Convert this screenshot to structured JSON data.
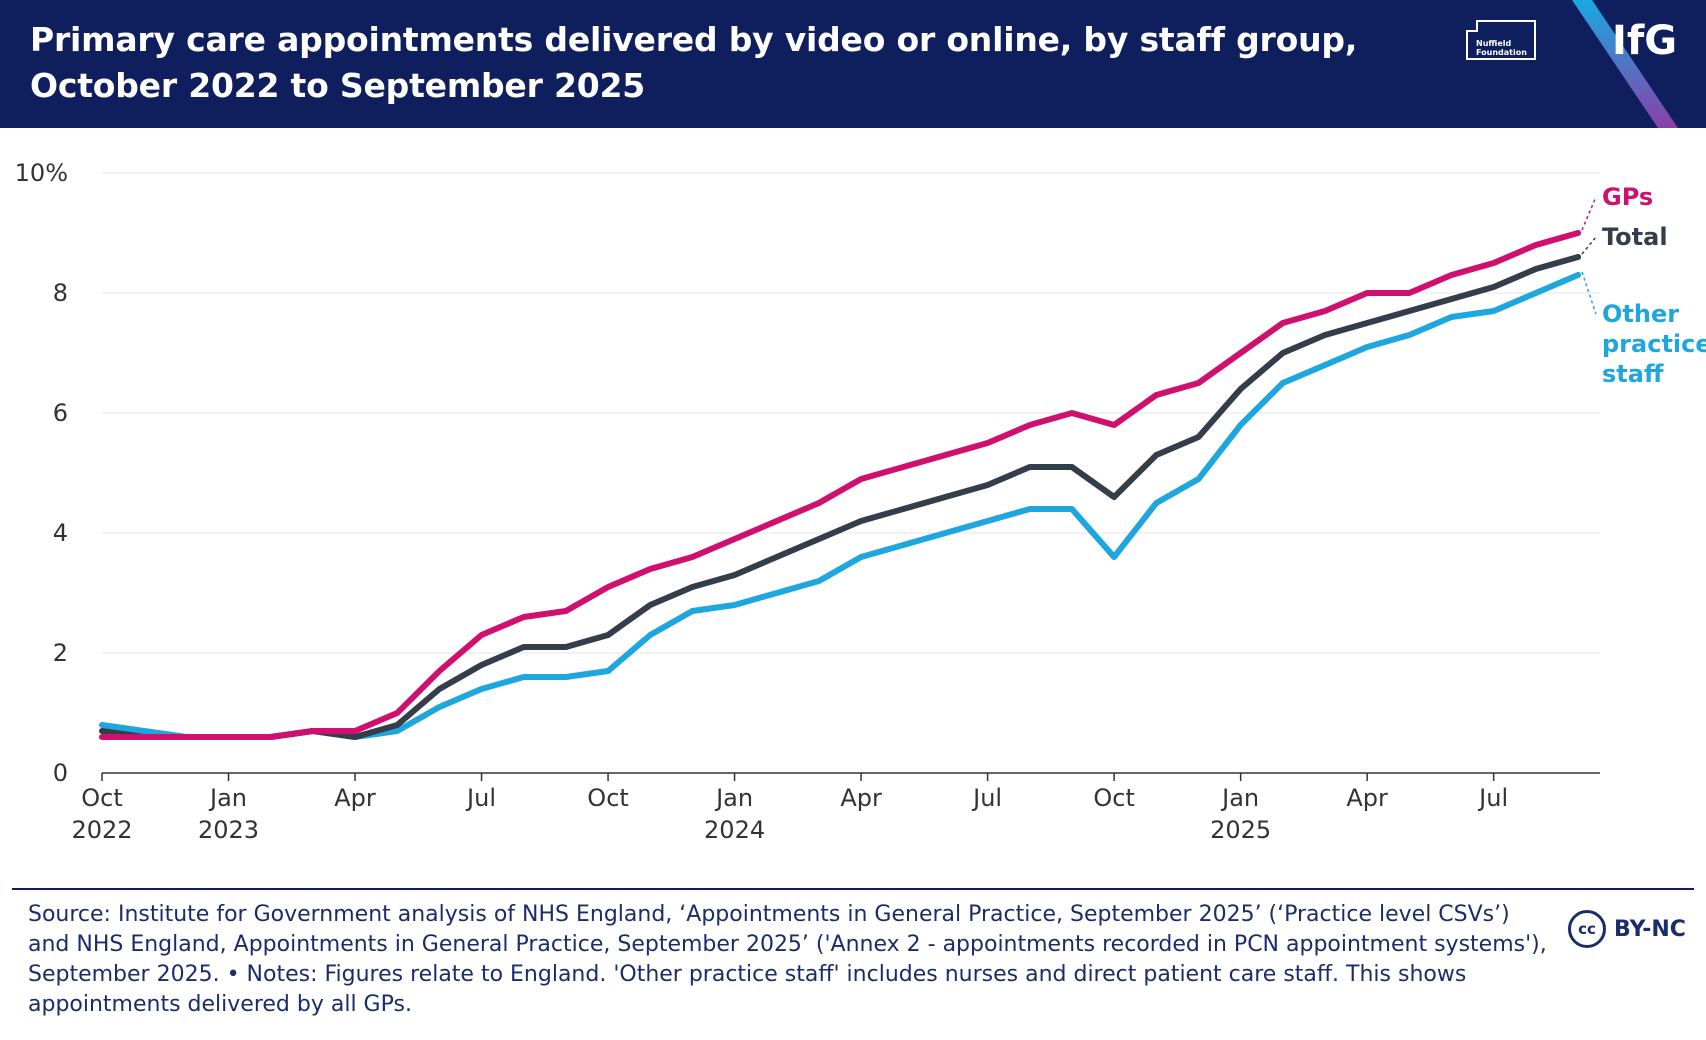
{
  "header": {
    "title": "Primary care appointments delivered by video or online, by staff group, October 2022 to September 2025",
    "logos": {
      "nuffield_line1": "Nuffield",
      "nuffield_line2": "Foundation",
      "ifg": "IfG"
    },
    "colors": {
      "background": "#0f1f5e",
      "stripe_top": "#19a9e0",
      "stripe_bottom": "#8a3fa8"
    }
  },
  "chart_data": {
    "type": "line",
    "title": "Primary care appointments delivered by video or online, by staff group, October 2022 to September 2025",
    "xlabel": "",
    "ylabel": "",
    "ylim": [
      0,
      10
    ],
    "yticks": [
      0,
      2,
      4,
      6,
      8,
      10
    ],
    "ytick_labels": [
      "0",
      "2",
      "4",
      "6",
      "8",
      "10%"
    ],
    "grid": true,
    "x_count": 36,
    "x_start": "Oct 2022",
    "x_end": "Sep 2025",
    "xtick_labels": [
      {
        "index": 0,
        "line1": "Oct",
        "line2": "2022"
      },
      {
        "index": 3,
        "line1": "Jan",
        "line2": "2023"
      },
      {
        "index": 6,
        "line1": "Apr",
        "line2": ""
      },
      {
        "index": 9,
        "line1": "Jul",
        "line2": ""
      },
      {
        "index": 12,
        "line1": "Oct",
        "line2": ""
      },
      {
        "index": 15,
        "line1": "Jan",
        "line2": "2024"
      },
      {
        "index": 18,
        "line1": "Apr",
        "line2": ""
      },
      {
        "index": 21,
        "line1": "Jul",
        "line2": ""
      },
      {
        "index": 24,
        "line1": "Oct",
        "line2": ""
      },
      {
        "index": 27,
        "line1": "Jan",
        "line2": "2025"
      },
      {
        "index": 30,
        "line1": "Apr",
        "line2": ""
      },
      {
        "index": 33,
        "line1": "Jul",
        "line2": ""
      }
    ],
    "series": [
      {
        "name": "Other practice staff",
        "label_lines": [
          "Other",
          "practice",
          "staff"
        ],
        "color": "#1ea6df",
        "values": [
          0.8,
          0.7,
          0.6,
          0.6,
          0.6,
          0.7,
          0.6,
          0.7,
          1.1,
          1.4,
          1.6,
          1.6,
          1.7,
          2.3,
          2.7,
          2.8,
          3.0,
          3.2,
          3.6,
          3.8,
          4.0,
          4.2,
          4.4,
          4.4,
          3.6,
          4.5,
          4.9,
          5.8,
          6.5,
          6.8,
          7.1,
          7.3,
          7.6,
          7.7,
          8.0,
          8.3
        ]
      },
      {
        "name": "Total",
        "label_lines": [
          "Total"
        ],
        "color": "#343d4a",
        "values": [
          0.7,
          0.6,
          0.6,
          0.6,
          0.6,
          0.7,
          0.6,
          0.8,
          1.4,
          1.8,
          2.1,
          2.1,
          2.3,
          2.8,
          3.1,
          3.3,
          3.6,
          3.9,
          4.2,
          4.4,
          4.6,
          4.8,
          5.1,
          5.1,
          4.6,
          5.3,
          5.6,
          6.4,
          7.0,
          7.3,
          7.5,
          7.7,
          7.9,
          8.1,
          8.4,
          8.6
        ]
      },
      {
        "name": "GPs",
        "label_lines": [
          "GPs"
        ],
        "color": "#d0106f",
        "values": [
          0.6,
          0.6,
          0.6,
          0.6,
          0.6,
          0.7,
          0.7,
          1.0,
          1.7,
          2.3,
          2.6,
          2.7,
          3.1,
          3.4,
          3.6,
          3.9,
          4.2,
          4.5,
          4.9,
          5.1,
          5.3,
          5.5,
          5.8,
          6.0,
          5.8,
          6.3,
          6.5,
          7.0,
          7.5,
          7.7,
          8.0,
          8.0,
          8.3,
          8.5,
          8.8,
          9.0
        ]
      }
    ]
  },
  "footer": {
    "note": "Source: Institute for Government analysis of NHS England, ‘Appointments in General Practice, September 2025’ (‘Practice level CSVs’) and NHS England, Appointments in General Practice, September 2025’ ('Annex 2 - appointments recorded in PCN appointment systems'), September 2025. • Notes: Figures relate to England. 'Other practice staff' includes nurses and direct patient care staff. This shows appointments delivered by all GPs.",
    "license_icon": "cc",
    "license_text": "BY-NC"
  }
}
